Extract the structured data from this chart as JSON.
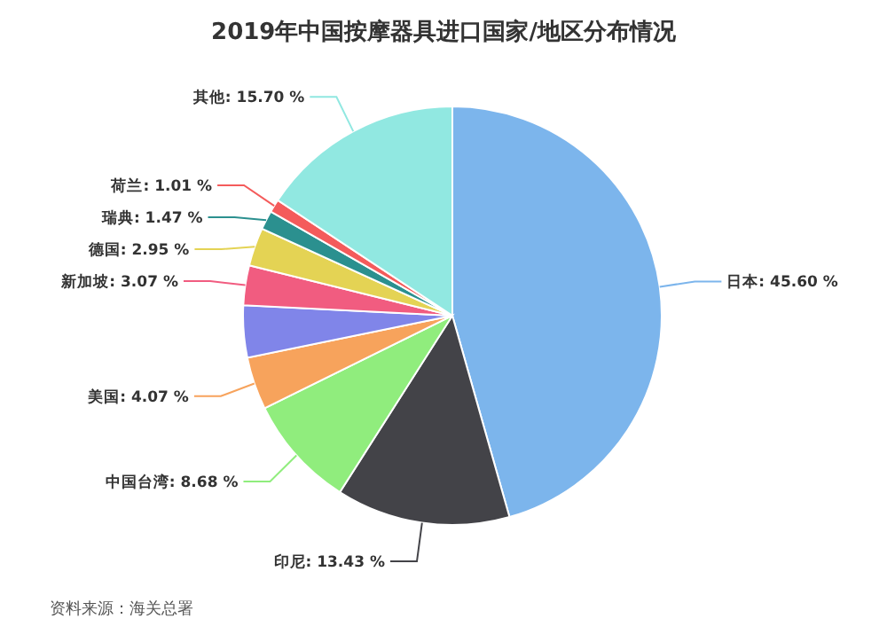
{
  "chart_data": {
    "type": "pie",
    "title": "2019年中国按摩器具进口国家/地区分布情况",
    "categories": [
      "日本",
      "印尼",
      "中国台湾",
      "美国",
      null,
      "新加坡",
      "德国",
      "瑞典",
      "荷兰",
      "其他"
    ],
    "values": [
      45.6,
      13.43,
      8.68,
      4.07,
      4.02,
      3.07,
      2.95,
      1.47,
      1.01,
      15.7
    ],
    "value_labels": [
      "45.60 %",
      "13.43 %",
      "8.68 %",
      "4.07 %",
      null,
      "3.07 %",
      "2.95 %",
      "1.47 %",
      "1.01 %",
      "15.70 %"
    ],
    "colors": [
      "#7cb5ec",
      "#434348",
      "#90ed7d",
      "#f7a35c",
      "#8085e9",
      "#f15c80",
      "#e4d354",
      "#2b908f",
      "#f45b5b",
      "#91e8e1"
    ],
    "annotations": [
      "资料来源：海关总署"
    ]
  }
}
